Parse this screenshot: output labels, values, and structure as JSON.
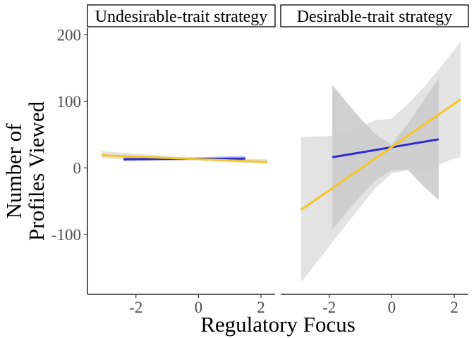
{
  "chart_data": {
    "type": "line",
    "xlabel": "Regulatory Focus",
    "ylabel_lines": [
      "Number of",
      "Profiles Viewed"
    ],
    "xlim": [
      -3.55,
      2.45
    ],
    "ylim": [
      -190,
      210
    ],
    "x_ticks": [
      -2,
      0,
      2
    ],
    "x_tick_labels": [
      "-2",
      "0",
      "2"
    ],
    "y_ticks": [
      200,
      100,
      0,
      -100
    ],
    "y_tick_labels": [
      "200",
      "100",
      "0",
      "-100"
    ],
    "grid": false,
    "legend": "none",
    "panels": [
      {
        "title": "Undesirable-trait strategy",
        "series": [
          {
            "color": "#2b2bd0",
            "band_color": "#8c8ce8",
            "x": [
              -2.4,
              1.5
            ],
            "y": [
              13,
              14
            ],
            "band_x": [
              -2.4,
              -0.4,
              1.5
            ],
            "band_lower": [
              10,
              12.3,
              10
            ],
            "band_upper": [
              16,
              15.5,
              18
            ]
          },
          {
            "color": "#f4c724",
            "band_color": "#cccccc",
            "x": [
              -3.1,
              2.2
            ],
            "y": [
              19,
              9
            ],
            "band_x": [
              -3.1,
              -0.5,
              2.2
            ],
            "band_lower": [
              14,
              12.5,
              6
            ],
            "band_upper": [
              25,
              16.2,
              13
            ]
          }
        ]
      },
      {
        "title": "Desirable-trait strategy",
        "series": [
          {
            "color": "#2b2bd0",
            "band_color": "#aaaaaa",
            "x": [
              -1.9,
              1.5
            ],
            "y": [
              16,
              43
            ],
            "band_x": [
              -1.9,
              -1.5,
              -1.0,
              -0.5,
              0.0,
              0.5,
              1.0,
              1.5
            ],
            "band_lower": [
              -93,
              -70,
              -42,
              -18,
              -4,
              -2,
              -27,
              -48
            ],
            "band_upper": [
              125,
              102,
              74,
              50,
              35,
              66,
              100,
              134
            ]
          },
          {
            "color": "#f4c724",
            "band_color": "#cccccc",
            "x": [
              -2.9,
              2.2
            ],
            "y": [
              -63,
              103
            ],
            "band_x": [
              -2.9,
              -2.5,
              -2.0,
              -1.5,
              -1.0,
              -0.5,
              0.0,
              0.5,
              1.0,
              1.5,
              2.0,
              2.2
            ],
            "band_lower": [
              -172,
              -148,
              -118,
              -88,
              -58,
              -30,
              -8,
              -4,
              -8,
              5,
              14,
              16
            ],
            "band_upper": [
              46,
              47,
              48,
              52,
              62,
              72,
              74,
              95,
              120,
              148,
              177,
              190
            ]
          }
        ]
      }
    ]
  }
}
